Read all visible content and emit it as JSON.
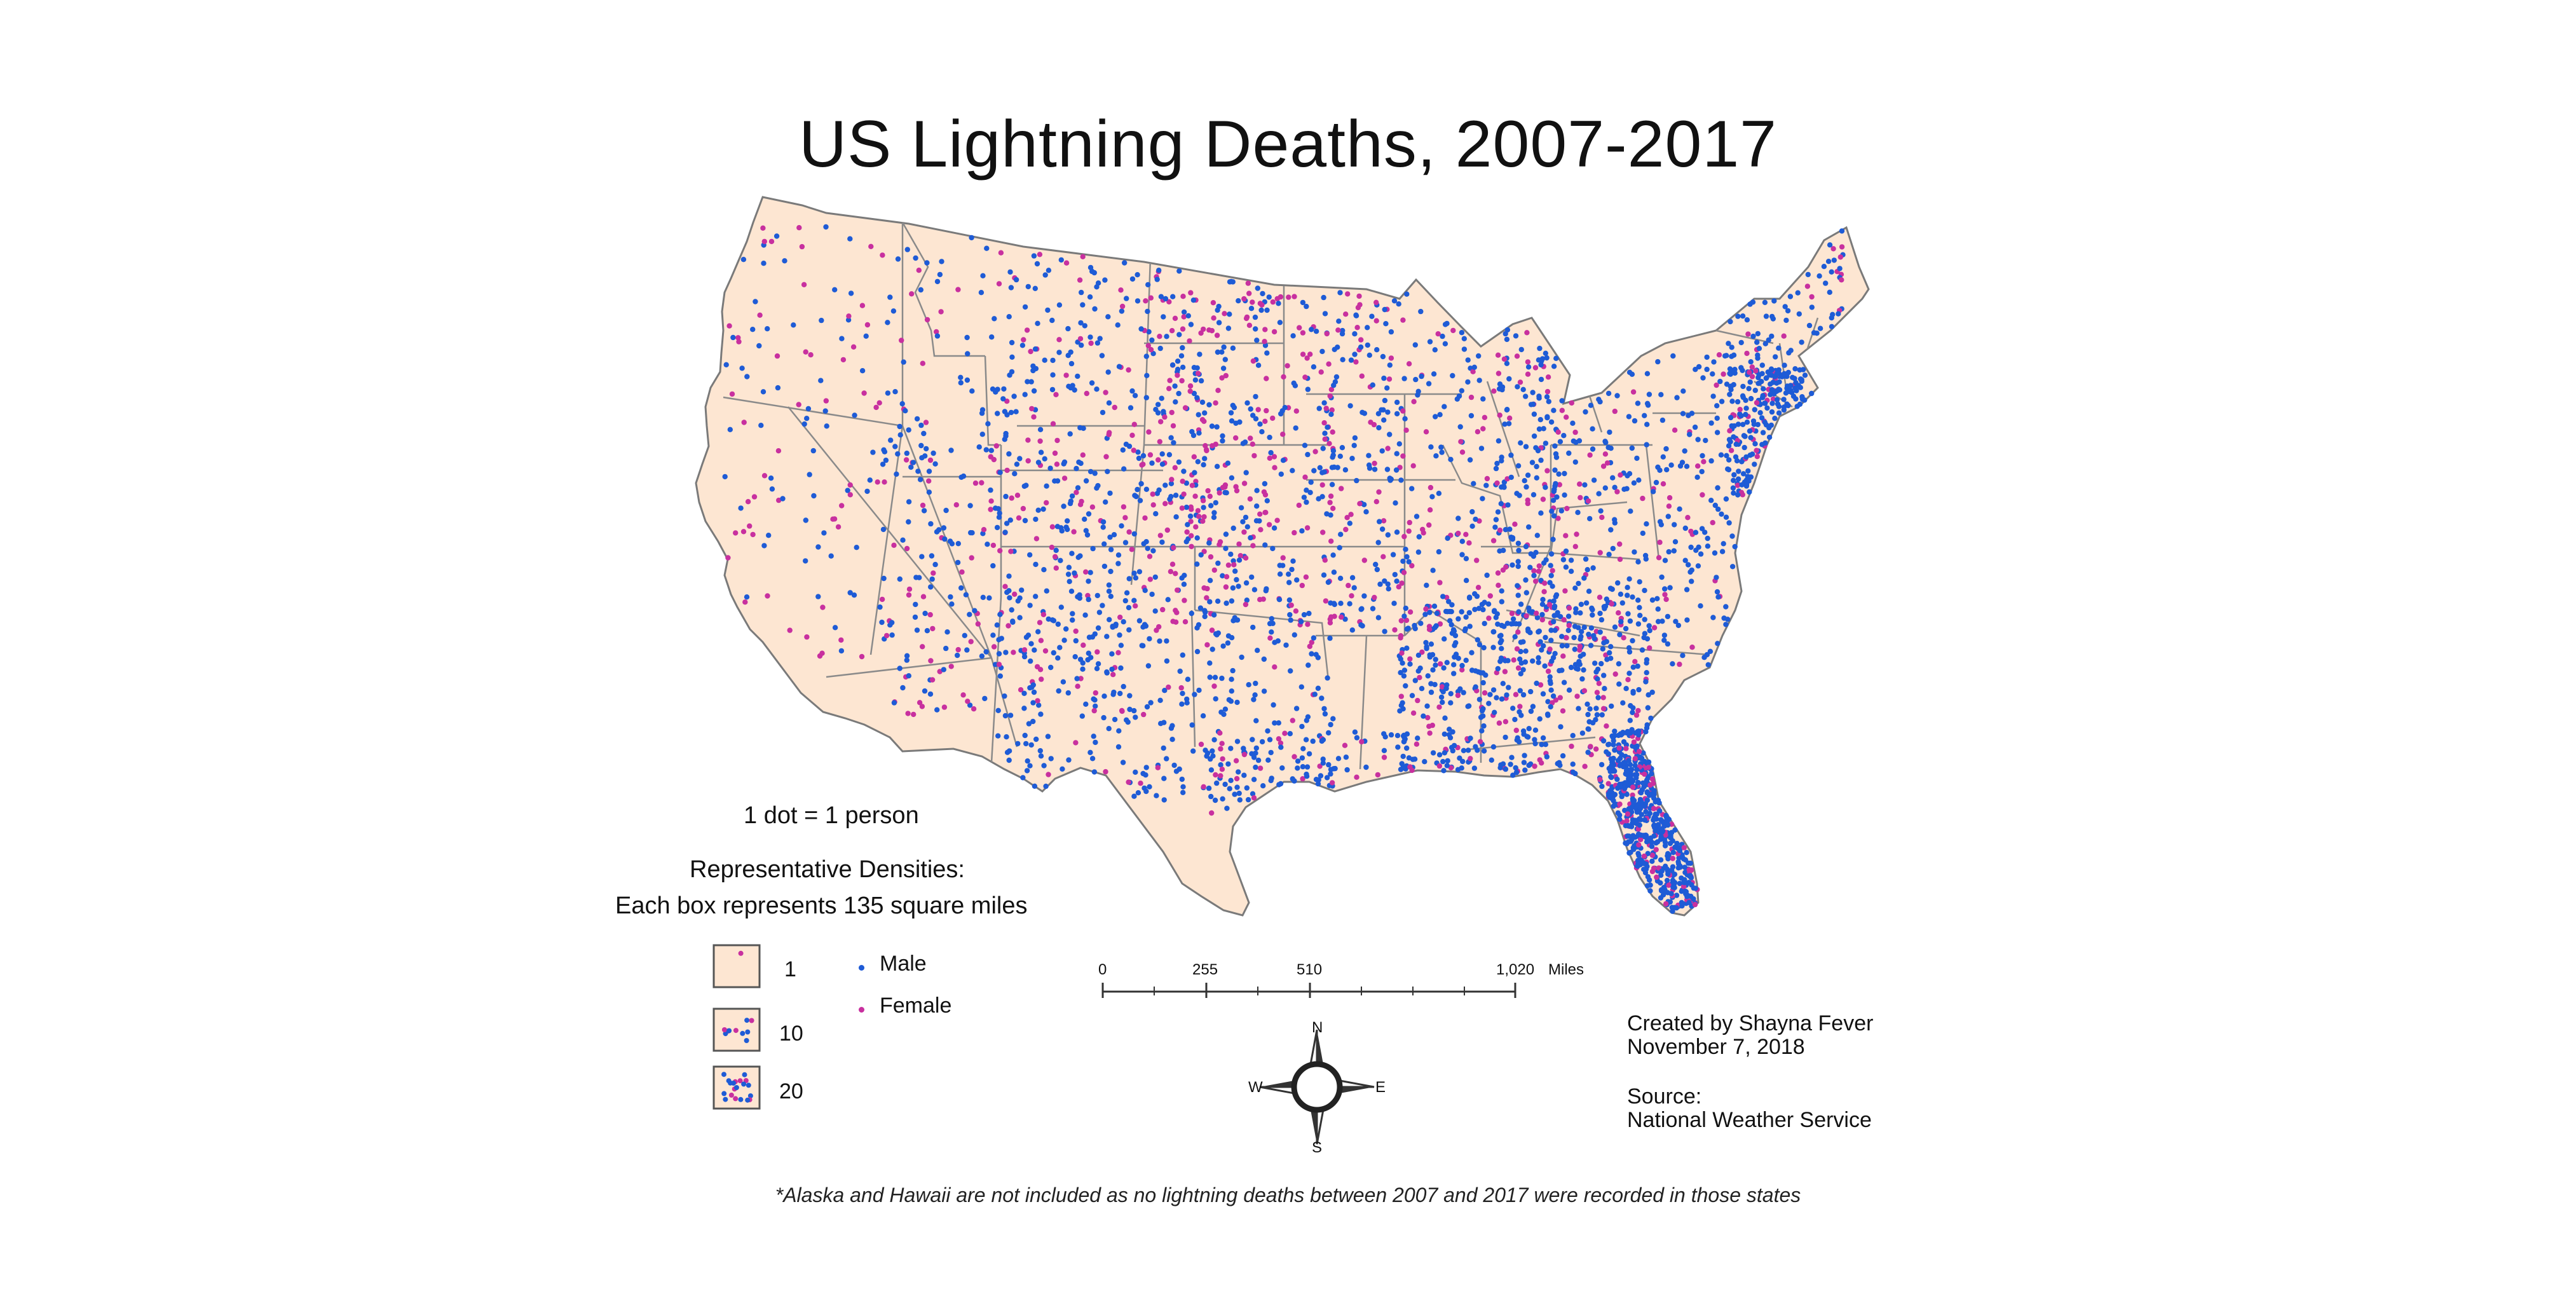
{
  "title": "US Lightning Deaths, 2007-2017",
  "legend": {
    "dot_value": "1 dot = 1 person",
    "densities_heading": "Representative Densities:",
    "densities_note": "Each box represents 135 square miles",
    "boxes": [
      {
        "label": "1",
        "count": 1
      },
      {
        "label": "10",
        "count": 10
      },
      {
        "label": "20",
        "count": 20
      }
    ],
    "series": [
      {
        "name": "Male",
        "color": "#1e5bd6"
      },
      {
        "name": "Female",
        "color": "#c8309f"
      }
    ]
  },
  "scale_bar": {
    "ticks": [
      "0",
      "255",
      "510",
      "1,020"
    ],
    "unit": "Miles"
  },
  "compass": {
    "n": "N",
    "s": "S",
    "e": "E",
    "w": "W"
  },
  "credit": {
    "created_by": "Created by Shayna Fever",
    "date": "November 7, 2018",
    "source_label": "Source:",
    "source": "National Weather Service"
  },
  "footnote": "*Alaska and Hawaii are not included as no lightning deaths between 2007 and 2017 were recorded in those states",
  "colors": {
    "land": "#fde6d2",
    "border": "#8a8a8a",
    "male": "#1e5bd6",
    "female": "#c8309f"
  }
}
